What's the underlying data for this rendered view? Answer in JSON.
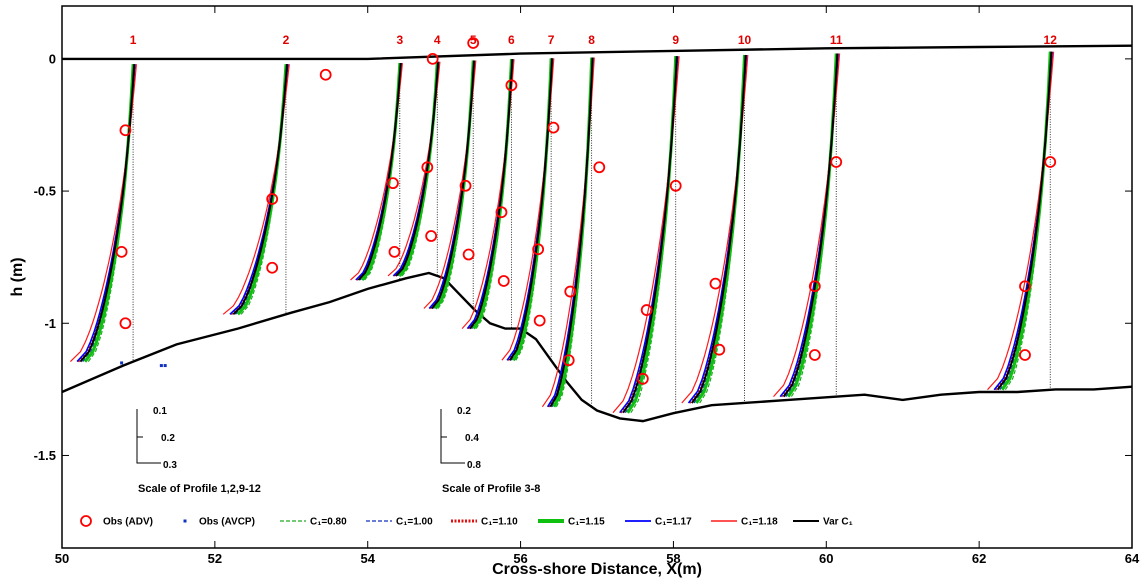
{
  "chart_data": {
    "type": "line",
    "xlabel": "Cross-shore Distance, X(m)",
    "ylabel": "h (m)",
    "xlim": [
      50,
      64
    ],
    "ylim": [
      -1.85,
      0.2
    ],
    "x_ticks": [
      "50",
      "52",
      "54",
      "56",
      "58",
      "60",
      "62",
      "64"
    ],
    "y_ticks": [
      "0",
      "-0.5",
      "-1",
      "-1.5"
    ],
    "grid": false,
    "legend_placement": "bottom",
    "colors": {
      "c080": "#22aa22",
      "c100": "#1030c0",
      "c110": "#e01010",
      "c115": "#10c010",
      "c117": "#0000ff",
      "c118": "#ff1a1a",
      "varc": "#000000",
      "obs": "#ff0000",
      "label": "#e00000"
    },
    "profiles": [
      {
        "label": "1",
        "x": 50.93,
        "label_x": 50.93
      },
      {
        "label": "2",
        "x": 52.93,
        "label_x": 52.93
      },
      {
        "label": "3",
        "x": 54.42,
        "label_x": 54.42
      },
      {
        "label": "4",
        "x": 54.91,
        "label_x": 54.91
      },
      {
        "label": "5",
        "x": 55.38,
        "label_x": 55.38
      },
      {
        "label": "6",
        "x": 55.88,
        "label_x": 55.88
      },
      {
        "label": "7",
        "x": 56.4,
        "label_x": 56.4
      },
      {
        "label": "8",
        "x": 56.93,
        "label_x": 56.93
      },
      {
        "label": "9",
        "x": 58.03,
        "label_x": 58.03
      },
      {
        "label": "10",
        "x": 58.93,
        "label_x": 58.93
      },
      {
        "label": "11",
        "x": 60.13,
        "label_x": 60.13
      },
      {
        "label": "12",
        "x": 62.93,
        "label_x": 62.93
      }
    ],
    "bottom_profile": {
      "x": [
        50.0,
        50.8,
        51.5,
        52.3,
        53.0,
        53.5,
        54.0,
        54.5,
        54.8,
        55.0,
        55.2,
        55.4,
        55.6,
        55.8,
        56.0,
        56.2,
        56.4,
        56.6,
        56.8,
        57.0,
        57.3,
        57.6,
        58.0,
        58.5,
        59.0,
        59.5,
        60.0,
        60.5,
        61.0,
        61.5,
        62.0,
        62.5,
        63.0,
        63.5,
        64.0
      ],
      "h": [
        -1.26,
        -1.16,
        -1.08,
        -1.02,
        -0.96,
        -0.92,
        -0.87,
        -0.83,
        -0.81,
        -0.83,
        -0.89,
        -0.95,
        -1.0,
        -1.02,
        -1.02,
        -1.06,
        -1.14,
        -1.22,
        -1.29,
        -1.33,
        -1.36,
        -1.37,
        -1.34,
        -1.31,
        -1.3,
        -1.29,
        -1.28,
        -1.27,
        -1.29,
        -1.27,
        -1.26,
        -1.26,
        -1.25,
        -1.25,
        -1.24
      ]
    },
    "surface": {
      "x": [
        50.0,
        52.0,
        54.0,
        56.0,
        58.0,
        60.0,
        62.0,
        64.0
      ],
      "h": [
        0.0,
        0.0,
        0.0,
        0.02,
        0.03,
        0.04,
        0.045,
        0.05
      ]
    },
    "obs_adv": [
      {
        "x": 50.83,
        "h": -0.27
      },
      {
        "x": 50.78,
        "h": -0.73
      },
      {
        "x": 50.83,
        "h": -1.0
      },
      {
        "x": 52.75,
        "h": -0.53
      },
      {
        "x": 52.75,
        "h": -0.79
      },
      {
        "x": 53.45,
        "h": -0.06
      },
      {
        "x": 54.33,
        "h": -0.47
      },
      {
        "x": 54.35,
        "h": -0.73
      },
      {
        "x": 54.78,
        "h": -0.41
      },
      {
        "x": 54.83,
        "h": -0.67
      },
      {
        "x": 54.85,
        "h": 0.0
      },
      {
        "x": 55.28,
        "h": -0.48
      },
      {
        "x": 55.32,
        "h": -0.74
      },
      {
        "x": 55.38,
        "h": 0.06
      },
      {
        "x": 55.75,
        "h": -0.58
      },
      {
        "x": 55.78,
        "h": -0.84
      },
      {
        "x": 55.88,
        "h": -0.1
      },
      {
        "x": 56.23,
        "h": -0.72
      },
      {
        "x": 56.25,
        "h": -0.99
      },
      {
        "x": 56.43,
        "h": -0.26
      },
      {
        "x": 56.65,
        "h": -0.88
      },
      {
        "x": 56.63,
        "h": -1.14
      },
      {
        "x": 57.03,
        "h": -0.41
      },
      {
        "x": 57.65,
        "h": -0.95
      },
      {
        "x": 57.6,
        "h": -1.21
      },
      {
        "x": 58.03,
        "h": -0.48
      },
      {
        "x": 58.55,
        "h": -0.85
      },
      {
        "x": 58.6,
        "h": -1.1
      },
      {
        "x": 59.85,
        "h": -0.86
      },
      {
        "x": 59.85,
        "h": -1.12
      },
      {
        "x": 60.13,
        "h": -0.39
      },
      {
        "x": 62.6,
        "h": -0.86
      },
      {
        "x": 62.6,
        "h": -1.12
      },
      {
        "x": 62.93,
        "h": -0.39
      }
    ],
    "obs_avcp": [
      {
        "x": 51.3,
        "h": -1.16
      },
      {
        "x": 51.35,
        "h": -1.16
      },
      {
        "x": 50.78,
        "h": -1.15
      }
    ],
    "scales": [
      {
        "caption": "Scale of Profile 1,2,9-12",
        "ticks": [
          "0.1",
          "0.2",
          "0.3"
        ]
      },
      {
        "caption": "Scale of Profile 3-8",
        "ticks": [
          "0.2",
          "0.4",
          "0.8"
        ]
      }
    ],
    "series": [
      {
        "name": "Obs (ADV)",
        "key": "obs_adv"
      },
      {
        "name": "Obs (AVCP)",
        "key": "obs_avcp"
      },
      {
        "name": "C₁=0.80",
        "key": "c080"
      },
      {
        "name": "C₁=1.00",
        "key": "c100"
      },
      {
        "name": "C₁=1.10",
        "key": "c110"
      },
      {
        "name": "C₁=1.15",
        "key": "c115"
      },
      {
        "name": "C₁=1.17",
        "key": "c117"
      },
      {
        "name": "C₁=1.18",
        "key": "c118"
      },
      {
        "name": "Var C₁",
        "key": "varc"
      }
    ]
  }
}
